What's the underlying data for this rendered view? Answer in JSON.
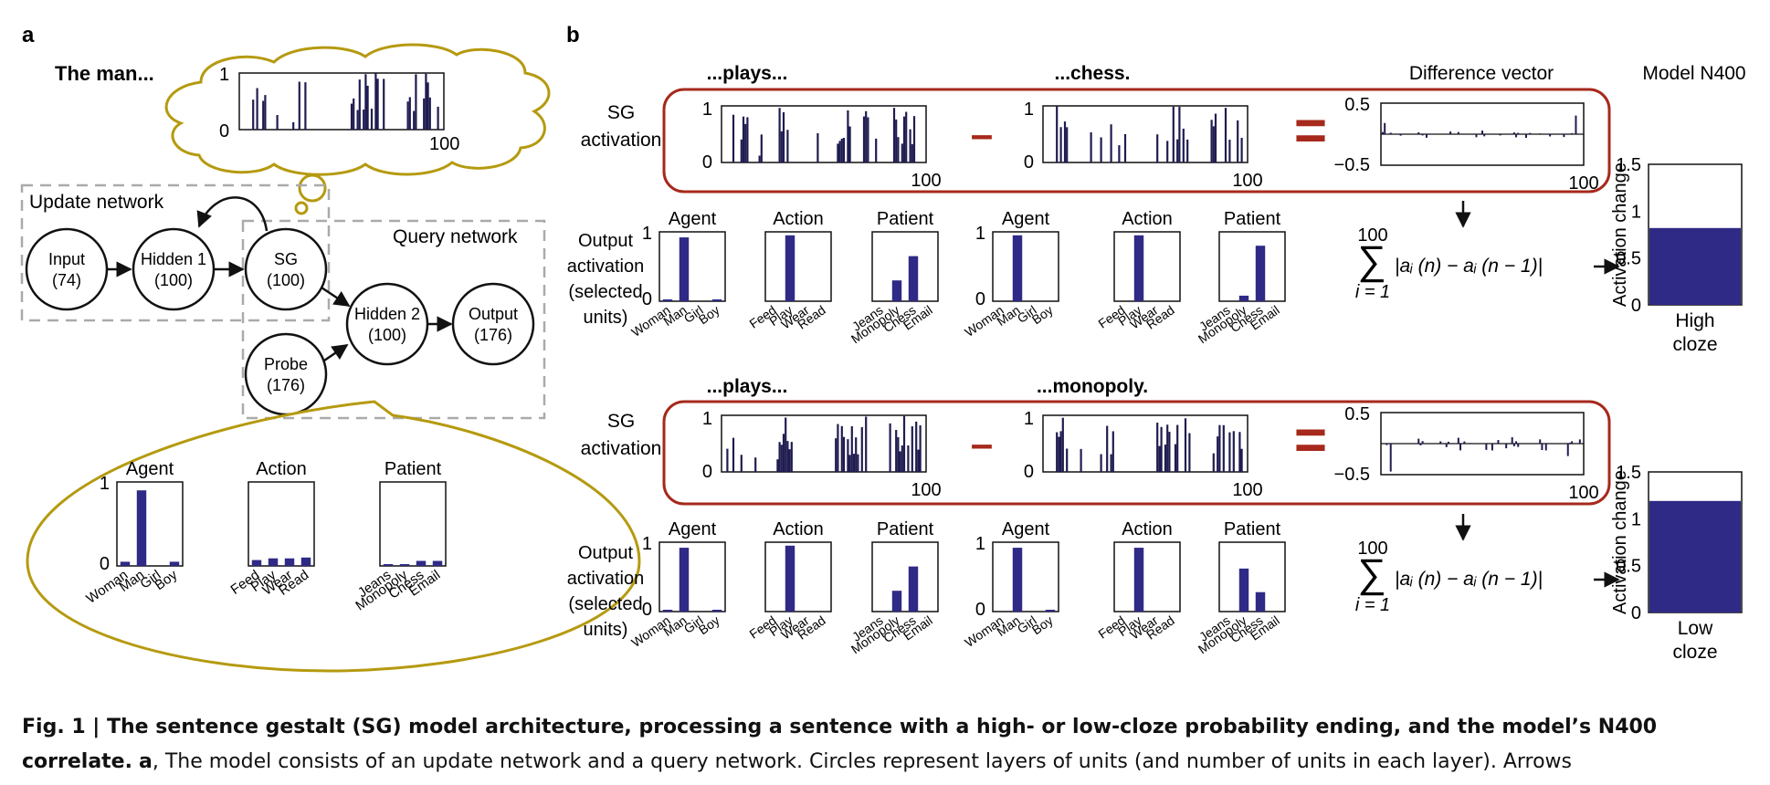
{
  "panel_a": {
    "letter": "a",
    "the_man": "The man...",
    "cloud_axis": {
      "ymax": "1",
      "ymin": "0",
      "xmax": "100"
    },
    "update_network": "Update network",
    "query_network": "Query network",
    "nodes": {
      "input": {
        "name": "Input",
        "size": "(74)"
      },
      "hidden1": {
        "name": "Hidden 1",
        "size": "(100)"
      },
      "sg": {
        "name": "SG",
        "size": "(100)"
      },
      "hidden2": {
        "name": "Hidden 2",
        "size": "(100)"
      },
      "output": {
        "name": "Output",
        "size": "(176)"
      },
      "probe": {
        "name": "Probe",
        "size": "(176)"
      }
    },
    "bubble": {
      "groups": [
        {
          "title": "Agent",
          "labels": [
            "Woman",
            "Man",
            "Girl",
            "Boy"
          ]
        },
        {
          "title": "Action",
          "labels": [
            "Feed",
            "Play",
            "Wear",
            "Read"
          ]
        },
        {
          "title": "Patient",
          "labels": [
            "Jeans",
            "Monopoly",
            "Chess",
            "Email"
          ]
        }
      ],
      "ymax": "1",
      "ymin": "0"
    }
  },
  "panel_b": {
    "letter": "b",
    "difference_vector": "Difference vector",
    "model_n400": "Model N400",
    "sg_activation": [
      "SG",
      "activation"
    ],
    "output_activation": [
      "Output",
      "activation",
      "(selected",
      "units)"
    ],
    "rows": [
      {
        "word1": "...plays...",
        "word2": "...chess.",
        "bar_label": [
          "High",
          "cloze"
        ]
      },
      {
        "word1": "...plays...",
        "word2": "...monopoly.",
        "bar_label": [
          "Low",
          "cloze"
        ]
      }
    ],
    "sg_axis": {
      "ymax": "1",
      "ymin": "0",
      "xmax": "100"
    },
    "diff_axis": {
      "ymax": "0.5",
      "ymin": "−0.5",
      "xmax": "100"
    },
    "minus": "–",
    "equals": "=",
    "formula": {
      "top": "100",
      "bottom": "i = 1",
      "body": "|aᵢ (n) − aᵢ (n − 1)|"
    },
    "n400_axis": {
      "label": "Activation change",
      "ticks": [
        "1.5",
        "1",
        "0.5",
        "0"
      ]
    },
    "output_groups": [
      {
        "title": "Agent",
        "labels": [
          "Woman",
          "Man",
          "Girl",
          "Boy"
        ]
      },
      {
        "title": "Action",
        "labels": [
          "Feed",
          "Play",
          "Wear",
          "Read"
        ]
      },
      {
        "title": "Patient",
        "labels": [
          "Jeans",
          "Monopoly",
          "Chess",
          "Email"
        ]
      }
    ],
    "output_axis": {
      "ymax": "1",
      "ymin": "0"
    }
  },
  "caption": {
    "lead": "Fig. 1 | The sentence gestalt (SG) model architecture, processing a sentence with a high- or low-cloze probability ending, and the model’s N400 correlate.",
    "part_a": "a",
    "rest": ", The model consists of an update network and a query network. Circles represent layers of units (and number of units in each layer). Arrows"
  },
  "colors": {
    "bar": "#2f2a85",
    "cloud": "#b59a10",
    "frame": "#a6291c",
    "dash": "#aaaaaa"
  },
  "chart_data": [
    {
      "type": "bar",
      "title": "Agent",
      "categories": [
        "Woman",
        "Man",
        "Girl",
        "Boy"
      ],
      "values": [
        0.05,
        0.9,
        0.0,
        0.05
      ],
      "ylim": [
        0,
        1
      ]
    },
    {
      "type": "bar",
      "title": "Action",
      "categories": [
        "Feed",
        "Play",
        "Wear",
        "Read"
      ],
      "values": [
        0.07,
        0.09,
        0.09,
        0.1
      ],
      "ylim": [
        0,
        1
      ]
    },
    {
      "type": "bar",
      "title": "Patient",
      "categories": [
        "Jeans",
        "Monopoly",
        "Chess",
        "Email"
      ],
      "values": [
        0.02,
        0.02,
        0.06,
        0.06
      ],
      "ylim": [
        0,
        1
      ]
    },
    {
      "type": "bar",
      "title": "Agent",
      "categories": [
        "Woman",
        "Man",
        "Girl",
        "Boy"
      ],
      "values": [
        0.02,
        0.92,
        0.0,
        0.02
      ],
      "ylim": [
        0,
        1
      ]
    },
    {
      "type": "bar",
      "title": "Action",
      "categories": [
        "Feed",
        "Play",
        "Wear",
        "Read"
      ],
      "values": [
        0.0,
        0.95,
        0.0,
        0.0
      ],
      "ylim": [
        0,
        1
      ]
    },
    {
      "type": "bar",
      "title": "Patient",
      "categories": [
        "Jeans",
        "Monopoly",
        "Chess",
        "Email"
      ],
      "values": [
        0.0,
        0.3,
        0.65,
        0.0
      ],
      "ylim": [
        0,
        1
      ]
    },
    {
      "type": "bar",
      "title": "Agent",
      "categories": [
        "Woman",
        "Man",
        "Girl",
        "Boy"
      ],
      "values": [
        0.0,
        0.95,
        0.0,
        0.0
      ],
      "ylim": [
        0,
        1
      ]
    },
    {
      "type": "bar",
      "title": "Action",
      "categories": [
        "Feed",
        "Play",
        "Wear",
        "Read"
      ],
      "values": [
        0.0,
        0.95,
        0.0,
        0.0
      ],
      "ylim": [
        0,
        1
      ]
    },
    {
      "type": "bar",
      "title": "Patient",
      "categories": [
        "Jeans",
        "Monopoly",
        "Chess",
        "Email"
      ],
      "values": [
        0.0,
        0.08,
        0.8,
        0.0
      ],
      "ylim": [
        0,
        1
      ]
    },
    {
      "type": "bar",
      "title": "Agent",
      "categories": [
        "Woman",
        "Man",
        "Girl",
        "Boy"
      ],
      "values": [
        0.02,
        0.92,
        0.0,
        0.02
      ],
      "ylim": [
        0,
        1
      ]
    },
    {
      "type": "bar",
      "title": "Action",
      "categories": [
        "Feed",
        "Play",
        "Wear",
        "Read"
      ],
      "values": [
        0.0,
        0.95,
        0.0,
        0.0
      ],
      "ylim": [
        0,
        1
      ]
    },
    {
      "type": "bar",
      "title": "Patient",
      "categories": [
        "Jeans",
        "Monopoly",
        "Chess",
        "Email"
      ],
      "values": [
        0.0,
        0.3,
        0.65,
        0.0
      ],
      "ylim": [
        0,
        1
      ]
    },
    {
      "type": "bar",
      "title": "Agent",
      "categories": [
        "Woman",
        "Man",
        "Girl",
        "Boy"
      ],
      "values": [
        0.0,
        0.92,
        0.0,
        0.02
      ],
      "ylim": [
        0,
        1
      ]
    },
    {
      "type": "bar",
      "title": "Action",
      "categories": [
        "Feed",
        "Play",
        "Wear",
        "Read"
      ],
      "values": [
        0.0,
        0.92,
        0.0,
        0.0
      ],
      "ylim": [
        0,
        1
      ]
    },
    {
      "type": "bar",
      "title": "Patient",
      "categories": [
        "Jeans",
        "Monopoly",
        "Chess",
        "Email"
      ],
      "values": [
        0.0,
        0.62,
        0.28,
        0.0
      ],
      "ylim": [
        0,
        1
      ]
    },
    {
      "type": "bar",
      "title": "Model N400",
      "categories": [
        "High cloze"
      ],
      "values": [
        0.82
      ],
      "ylim": [
        0,
        1.5
      ],
      "ylabel": "Activation change"
    },
    {
      "type": "bar",
      "title": "Model N400",
      "categories": [
        "Low cloze"
      ],
      "values": [
        1.19
      ],
      "ylim": [
        0,
        1.5
      ],
      "ylabel": "Activation change"
    }
  ]
}
